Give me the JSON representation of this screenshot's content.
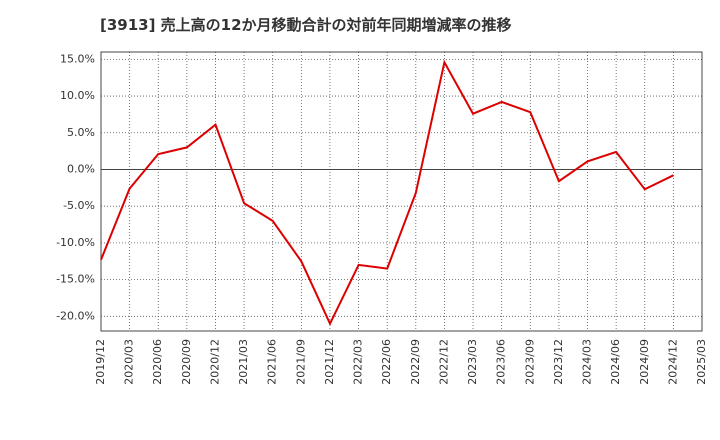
{
  "chart_data": {
    "type": "line",
    "title": "[3913]  売上高の12か月移動合計の対前年同期増減率の推移",
    "xlabel": "",
    "ylabel": "",
    "ylim": [
      -22,
      16
    ],
    "yticks": [
      15,
      10,
      5,
      0,
      -5,
      -10,
      -15,
      -20
    ],
    "ytick_labels": [
      "15.0%",
      "10.0%",
      "5.0%",
      "0.0%",
      "-5.0%",
      "-10.0%",
      "-15.0%",
      "-20.0%"
    ],
    "x_tick_labels": [
      "2019/12",
      "2020/03",
      "2020/06",
      "2020/09",
      "2020/12",
      "2021/03",
      "2021/06",
      "2021/09",
      "2021/12",
      "2022/03",
      "2022/06",
      "2022/09",
      "2022/12",
      "2023/03",
      "2023/06",
      "2023/09",
      "2023/12",
      "2024/03",
      "2024/06",
      "2024/09",
      "2024/12",
      "2025/03"
    ],
    "grid": true,
    "series": [
      {
        "name": "対前年同期増減率",
        "color": "#dd0000",
        "values": [
          -12.3,
          -2.6,
          2.1,
          3.0,
          6.1,
          -4.6,
          -7.0,
          -12.5,
          -21.0,
          -13.0,
          -13.5,
          -3.2,
          14.6,
          7.6,
          9.2,
          7.8,
          -1.6,
          1.1,
          2.4,
          -2.7,
          -0.8
        ]
      }
    ]
  }
}
